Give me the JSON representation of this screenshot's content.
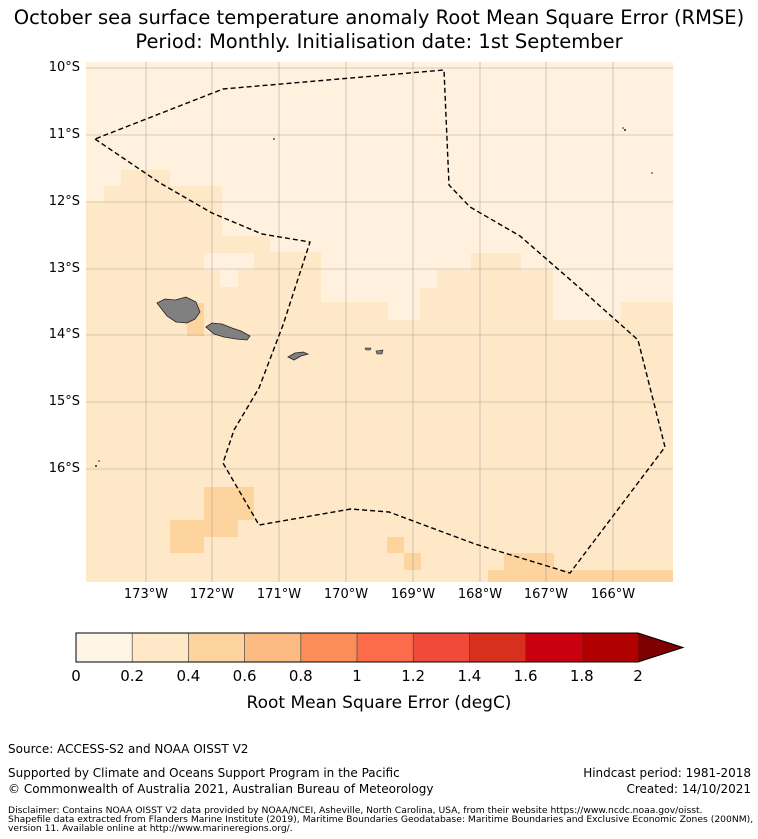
{
  "title_line1": "October sea surface temperature anomaly Root Mean Square Error (RMSE)",
  "title_line2": "Period: Monthly. Initialisation date: 1st September",
  "lat_labels": [
    "10°S",
    "11°S",
    "12°S",
    "13°S",
    "14°S",
    "15°S",
    "16°S"
  ],
  "lon_labels": [
    "173°W",
    "172°W",
    "171°W",
    "170°W",
    "169°W",
    "168°W",
    "167°W",
    "166°W"
  ],
  "colorbar": {
    "label": "Root Mean Square Error (degC)",
    "ticks": [
      "0",
      "0.2",
      "0.4",
      "0.6",
      "0.8",
      "1",
      "1.2",
      "1.4",
      "1.6",
      "1.8",
      "2"
    ],
    "colors": [
      "#fff5e6",
      "#fee8c8",
      "#fdd49e",
      "#fdbb84",
      "#fc8d59",
      "#fc6c4b",
      "#ef4a3a",
      "#d7301f",
      "#c8000f",
      "#b00000",
      "#7f0000"
    ]
  },
  "map": {
    "background_color": "#fff1de",
    "base_fill": "#fee8c8",
    "light_fill": "#fff1de",
    "mid_fill": "#fdd49e",
    "land_color": "#808080",
    "boundary_style": "dashed"
  },
  "footer": {
    "source": "Source: ACCESS-S2 and NOAA OISST V2",
    "support": "Supported by Climate and Oceans Support Program in the Pacific",
    "copyright": "© Commonwealth of Australia 2021, Australian Bureau of Meteorology",
    "hindcast": "Hindcast period: 1981-2018",
    "created": "Created: 14/10/2021",
    "disclaimer_1": "Disclaimer: Contains NOAA OISST V2 data provided by NOAA/NCEI, Asheville, North Carolina, USA, from their website https://www.ncdc.noaa.gov/oisst.",
    "disclaimer_2": "Shapefile data extracted from Flanders Marine Institute (2019), Maritime Boundaries Geodatabase: Maritime Boundaries and Exclusive Economic Zones (200NM),",
    "disclaimer_3": "version 11. Available online at http://www.marineregions.org/."
  }
}
